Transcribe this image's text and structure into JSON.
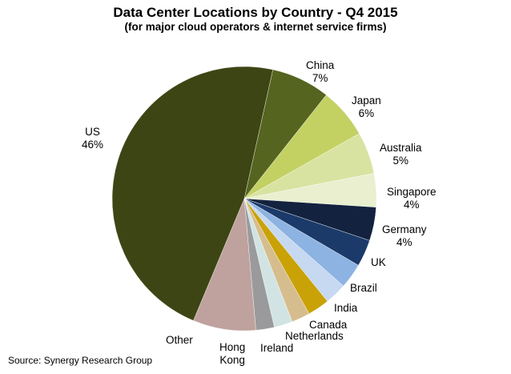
{
  "chart_data": {
    "type": "pie",
    "title": "Data Center Locations by Country - Q4 2015",
    "subtitle": "(for major cloud operators & internet service firms)",
    "source": "Source: Synergy Research Group",
    "start_angle_deg": 12.5,
    "direction": "clockwise",
    "slices": [
      {
        "label": "China",
        "value": 7,
        "value_label": "7%",
        "color": "#55641f"
      },
      {
        "label": "Japan",
        "value": 6,
        "value_label": "6%",
        "color": "#c3d163"
      },
      {
        "label": "Australia",
        "value": 5,
        "value_label": "5%",
        "color": "#d8e3a1"
      },
      {
        "label": "Singapore",
        "value": 4,
        "value_label": "4%",
        "color": "#e9efcf"
      },
      {
        "label": "Germany",
        "value": 4,
        "value_label": "4%",
        "color": "#13223e"
      },
      {
        "label": "UK",
        "value": 3.2,
        "value_label": "",
        "color": "#1b3a6a"
      },
      {
        "label": "Brazil",
        "value": 3,
        "value_label": "",
        "color": "#8db3e2"
      },
      {
        "label": "India",
        "value": 2.6,
        "value_label": "",
        "color": "#c6d9f0"
      },
      {
        "label": "Canada",
        "value": 2.6,
        "value_label": "",
        "color": "#c9a207"
      },
      {
        "label": "Netherlands",
        "value": 2.2,
        "value_label": "",
        "color": "#d6bd8e"
      },
      {
        "label": "Ireland",
        "value": 2.2,
        "value_label": "",
        "color": "#d1e4e3"
      },
      {
        "label": "Hong Kong",
        "value": 2.2,
        "value_label": "",
        "color": "#9a9a9c"
      },
      {
        "label": "Other",
        "value": 7.5,
        "value_label": "",
        "color": "#bfa29d"
      },
      {
        "label": "US",
        "value": 46,
        "value_label": "46%",
        "color": "#3d4514"
      }
    ]
  },
  "labels": {
    "china": [
      "China",
      "7%"
    ],
    "japan": [
      "Japan",
      "6%"
    ],
    "australia": [
      "Australia",
      "5%"
    ],
    "singapore": [
      "Singapore",
      "4%"
    ],
    "germany": [
      "Germany",
      "4%"
    ],
    "uk": "UK",
    "brazil": "Brazil",
    "india": "India",
    "canada": "Canada",
    "netherlands": "Netherlands",
    "ireland": "Ireland",
    "hongkong": [
      "Hong",
      "Kong"
    ],
    "other": "Other",
    "us": [
      "US",
      "46%"
    ]
  }
}
